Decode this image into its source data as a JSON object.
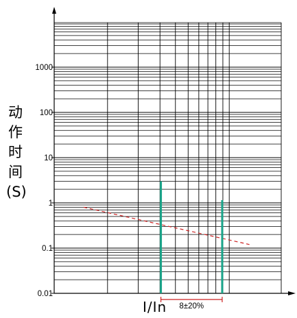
{
  "chart_data": {
    "type": "line",
    "title": "",
    "ylabel_chars": [
      "动",
      "作",
      "时",
      "间",
      "(S)"
    ],
    "xlabel": "I/In",
    "y_scale": "log",
    "ylim": [
      0.01,
      10000
    ],
    "y_ticks": [
      {
        "value": 0.01,
        "label": "0.01"
      },
      {
        "value": 0.1,
        "label": "0.1"
      },
      {
        "value": 1,
        "label": "1"
      },
      {
        "value": 10,
        "label": "10"
      },
      {
        "value": 100,
        "label": "100"
      },
      {
        "value": 1000,
        "label": "1000"
      }
    ],
    "x_ticks_labeled": false,
    "grid": true,
    "series": [
      {
        "style": "dashed",
        "color": "#cc2222",
        "points": [
          [
            0.13,
            0.8
          ],
          [
            0.86,
            0.12
          ]
        ]
      }
    ],
    "markers": [
      {
        "color": "#1aa58a",
        "x": 0.47,
        "y_top": 3.0
      },
      {
        "color": "#1aa58a",
        "x": 0.74,
        "y_top": 1.15
      }
    ],
    "annotations": [
      {
        "text": "8±20%",
        "color": "#cc2222"
      }
    ]
  }
}
